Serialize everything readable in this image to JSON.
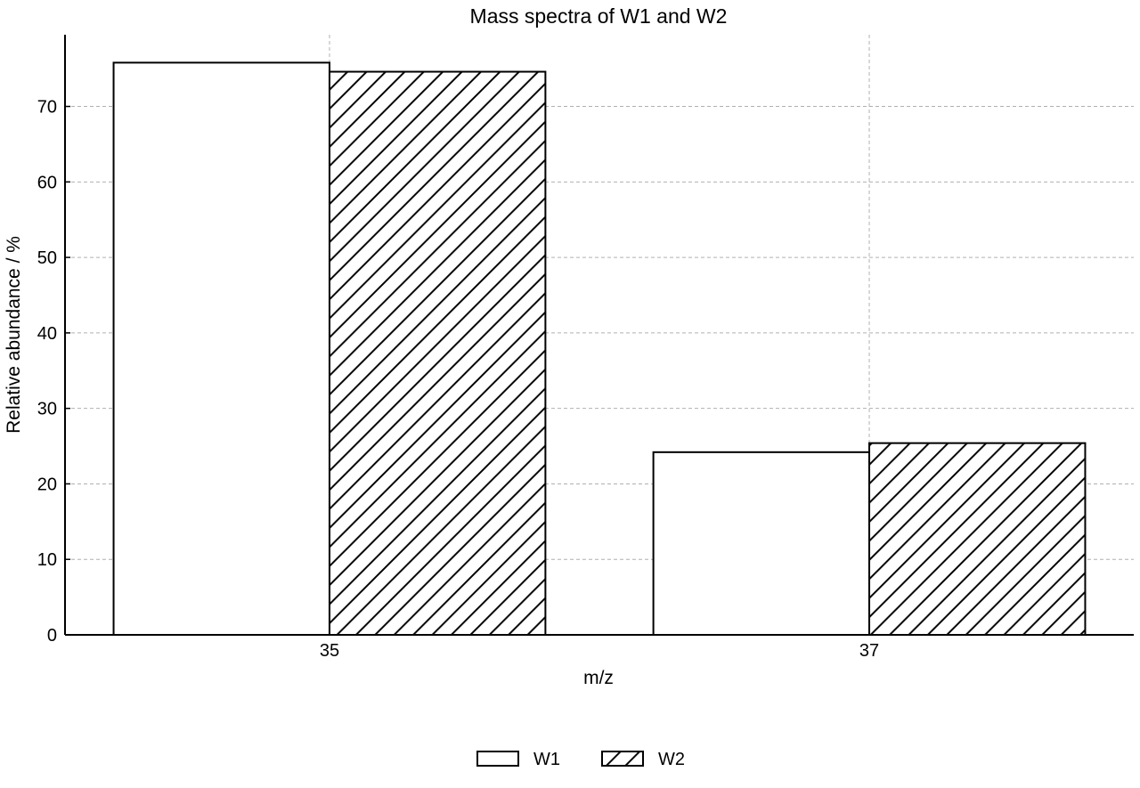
{
  "chart_data": {
    "type": "bar",
    "title": "Mass spectra of W1 and W2",
    "xlabel": "m/z",
    "ylabel": "Relative abundance / %",
    "categories": [
      "35",
      "37"
    ],
    "series": [
      {
        "name": "W1",
        "values": [
          75.8,
          24.2
        ],
        "fill": "#ffffff",
        "pattern": "none"
      },
      {
        "name": "W2",
        "values": [
          74.6,
          25.4
        ],
        "fill": "#ffffff",
        "pattern": "diagonal-hatch"
      }
    ],
    "ylim": [
      0,
      79.5
    ],
    "yticks": [
      0,
      10,
      20,
      30,
      40,
      50,
      60,
      70
    ],
    "grid": true,
    "legend_position": "bottom-center",
    "colors": {
      "edge": "#000000",
      "grid": "#b0b0b0",
      "background": "#ffffff"
    }
  }
}
